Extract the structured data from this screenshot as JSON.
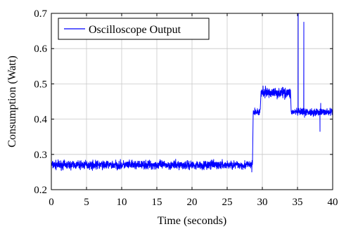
{
  "chart_data": {
    "type": "line",
    "title": "",
    "xlabel": "Time (seconds)",
    "ylabel": "Consumption (Watt)",
    "xlim": [
      0,
      40
    ],
    "ylim": [
      0.2,
      0.7
    ],
    "x_ticks": [
      0,
      5,
      10,
      15,
      20,
      25,
      30,
      35,
      40
    ],
    "x_tick_labels": [
      "0",
      "5",
      "10",
      "15",
      "20",
      "25",
      "30",
      "35",
      "40"
    ],
    "y_ticks": [
      0.2,
      0.3,
      0.4,
      0.5,
      0.6,
      0.7
    ],
    "y_tick_labels": [
      "0.2",
      "0.3",
      "0.4",
      "0.5",
      "0.6",
      "0.7"
    ],
    "grid": true,
    "legend_position": "top-left",
    "colors": {
      "series": "#0000ff",
      "grid": "#c8c8c8",
      "axis": "#000000"
    },
    "series": [
      {
        "name": "Oscilloscope Output",
        "segments": [
          {
            "x_start": 0,
            "x_end": 28.6,
            "mean": 0.27,
            "noise": 0.006
          },
          {
            "x_start": 28.7,
            "x_end": 29.7,
            "mean": 0.42,
            "noise": 0.005
          },
          {
            "x_start": 29.8,
            "x_end": 34.0,
            "mean": 0.475,
            "noise": 0.007
          },
          {
            "x_start": 34.1,
            "x_end": 40,
            "mean": 0.42,
            "noise": 0.005
          }
        ],
        "spikes": [
          {
            "x": 28.5,
            "y": 0.25
          },
          {
            "x": 35.1,
            "y": 0.7
          },
          {
            "x": 35.9,
            "y": 0.675
          },
          {
            "x": 36.0,
            "y": 0.405
          },
          {
            "x": 38.2,
            "y": 0.365
          },
          {
            "x": 38.3,
            "y": 0.445
          }
        ]
      }
    ]
  }
}
